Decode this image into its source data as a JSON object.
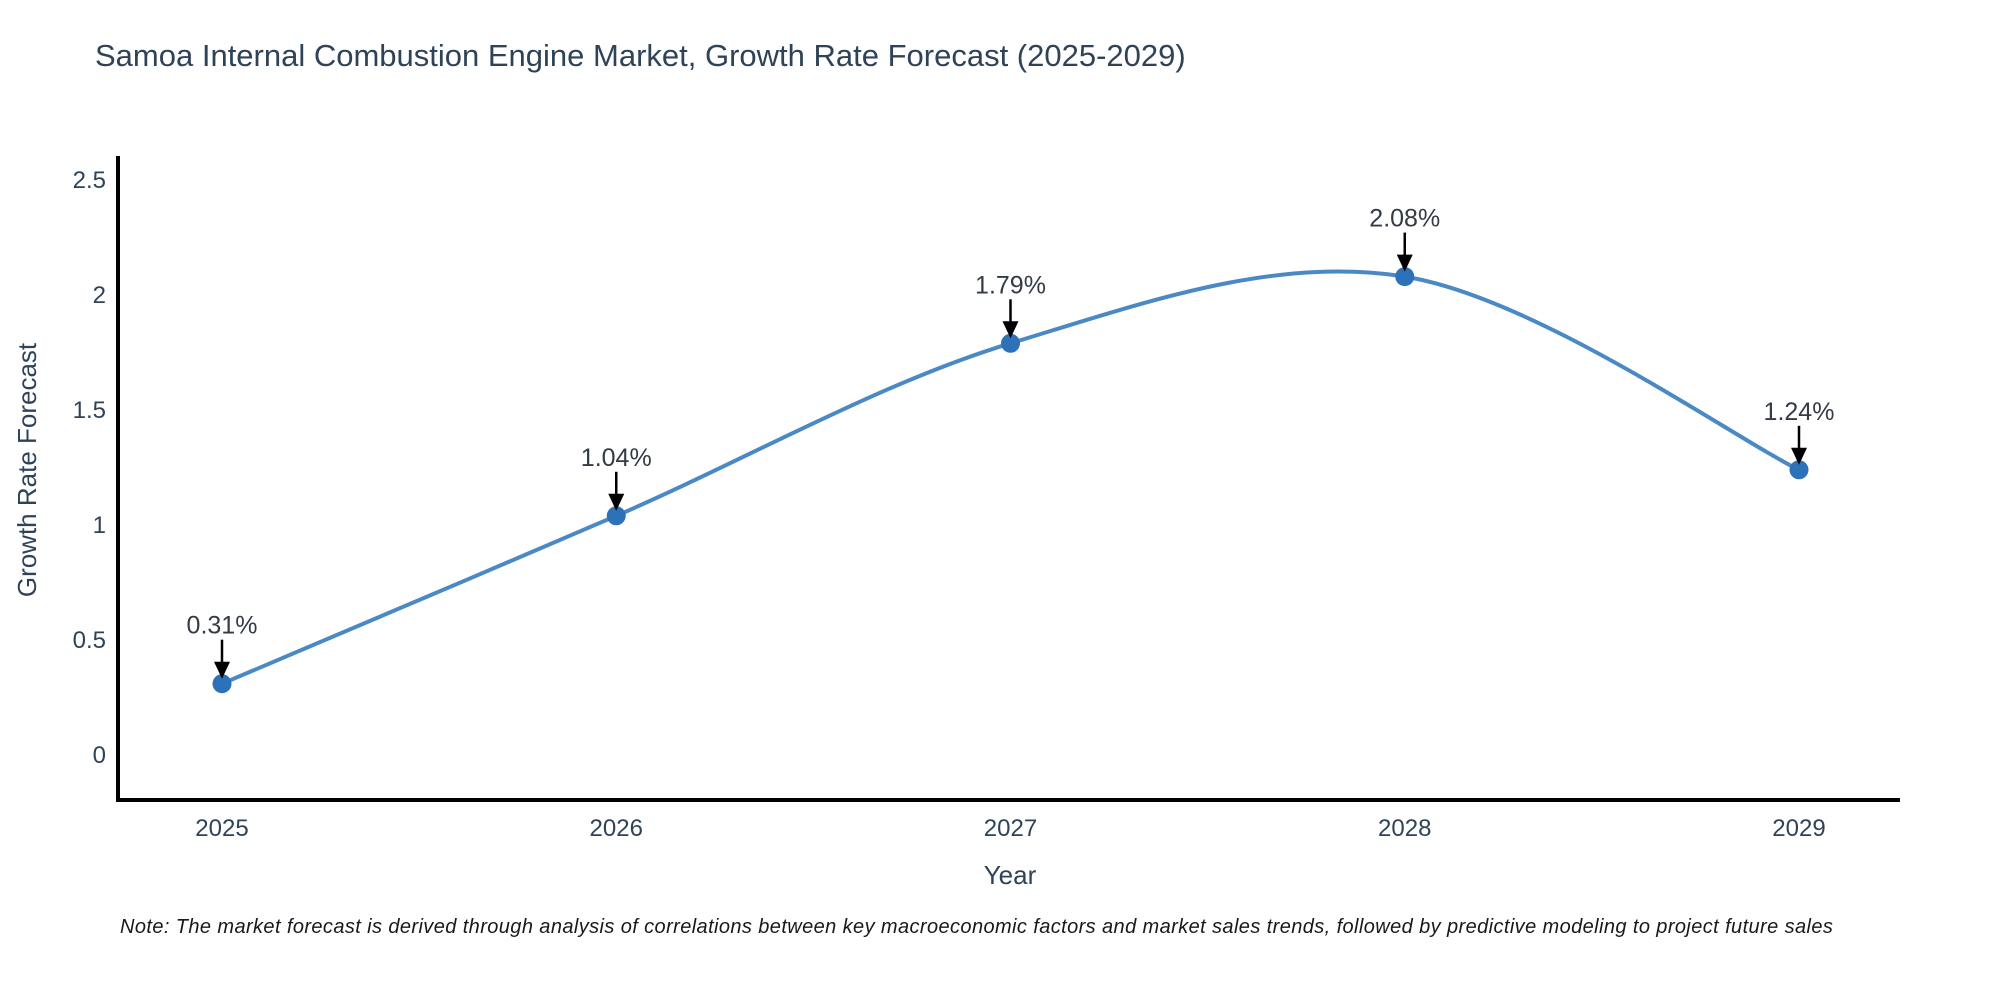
{
  "title": "Samoa Internal Combustion Engine Market, Growth Rate Forecast (2025-2029)",
  "note": "Note: The market forecast is derived through analysis of correlations between key macroeconomic factors and market sales trends, followed by predictive modeling to project future sales",
  "chart_data": {
    "type": "line",
    "curve": "spline",
    "title": "Samoa Internal Combustion Engine Market, Growth Rate Forecast (2025-2029)",
    "xlabel": "Year",
    "ylabel": "Growth Rate Forecast",
    "x": [
      2025,
      2026,
      2027,
      2028,
      2029
    ],
    "values": [
      0.31,
      1.04,
      1.79,
      2.08,
      1.24
    ],
    "point_labels": [
      "0.31%",
      "1.04%",
      "1.79%",
      "2.08%",
      "1.24%"
    ],
    "xticks": [
      "2025",
      "2026",
      "2027",
      "2028",
      "2029"
    ],
    "yticks": [
      0,
      0.5,
      1,
      1.5,
      2,
      2.5
    ],
    "ylim": [
      0,
      2.5
    ],
    "grid": false,
    "legend": "none",
    "annotation_style": "label-above-with-down-arrow",
    "line_color": "#4a89c4",
    "marker_color": "#2d72b8",
    "arrow_color": "#000000",
    "axis_color": "#000000",
    "text_color": "#2f4358"
  }
}
